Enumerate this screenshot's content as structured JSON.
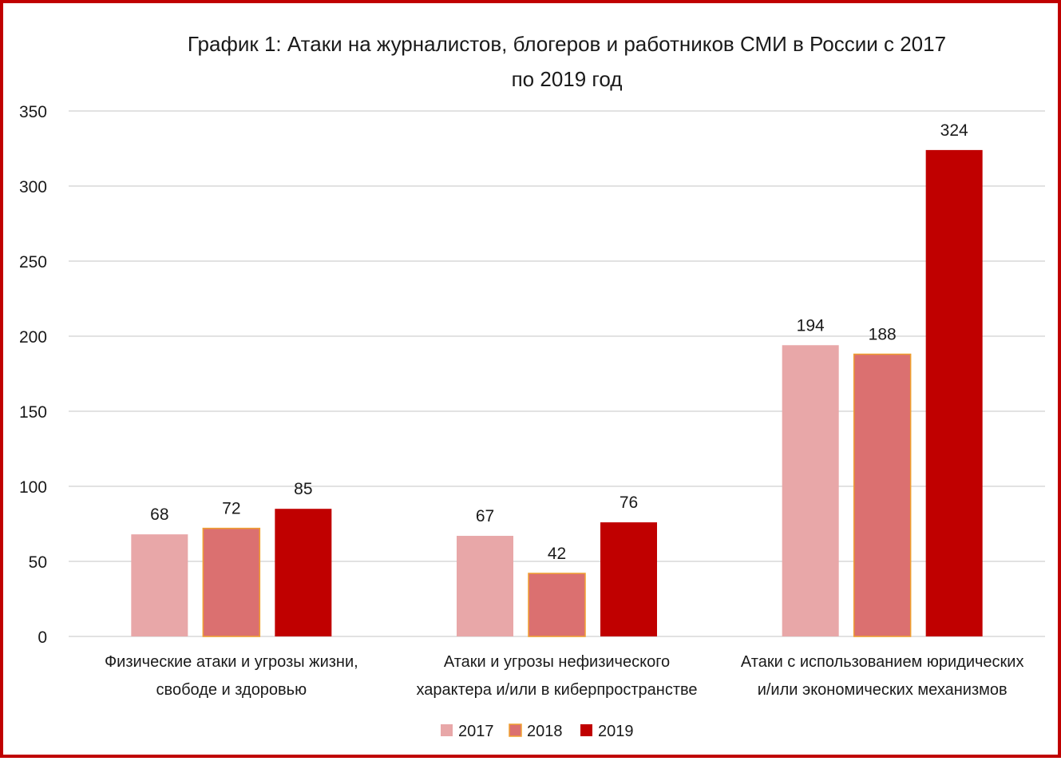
{
  "chart_data": {
    "type": "bar",
    "title_lines": [
      "График 1: Атаки на журналистов, блогеров и работников СМИ в России с 2017",
      "по 2019 год"
    ],
    "categories": [
      [
        "Физические атаки и угрозы жизни,",
        "свободе и здоровью"
      ],
      [
        "Атаки и угрозы нефизического",
        "характера и/или в киберпространстве"
      ],
      [
        "Атаки с использованием юридических",
        "и/или экономических механизмов"
      ]
    ],
    "series": [
      {
        "name": "2017",
        "values": [
          68,
          67,
          194
        ],
        "color": "#e8a7a8"
      },
      {
        "name": "2018",
        "values": [
          72,
          42,
          188
        ],
        "color": "#db7070"
      },
      {
        "name": "2019",
        "values": [
          85,
          76,
          324
        ],
        "color": "#c00000"
      }
    ],
    "ylim": [
      0,
      350
    ],
    "yticks": [
      0,
      50,
      100,
      150,
      200,
      250,
      300,
      350
    ],
    "grid": true,
    "legend_position": "bottom",
    "border_color": "#c00000"
  }
}
